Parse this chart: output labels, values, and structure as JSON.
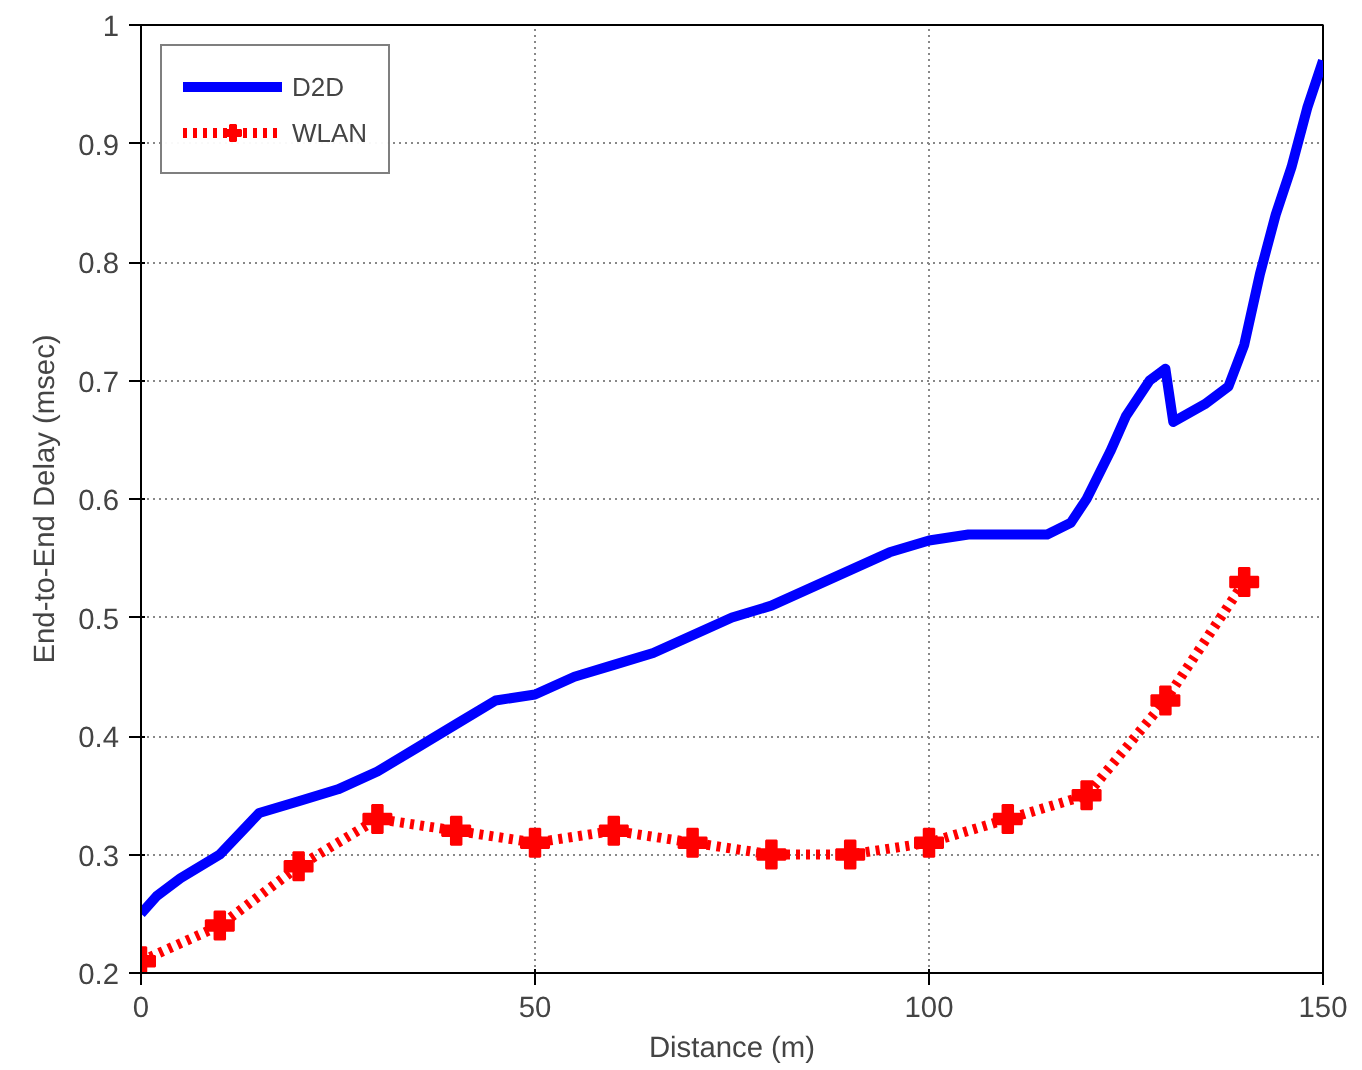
{
  "chart_data": {
    "type": "line",
    "xlabel": "Distance (m)",
    "ylabel": "End-to-End Delay (msec)",
    "xlim": [
      0,
      150
    ],
    "xticks": [
      0,
      50,
      100,
      150
    ],
    "ylim": [
      0.2,
      1
    ],
    "yticks": [
      0.2,
      0.3,
      0.4,
      0.5,
      0.6,
      0.7,
      0.8,
      0.9,
      1
    ],
    "grid": true,
    "legend": "top left",
    "series": [
      {
        "name": "D2D",
        "color": "#0000ff",
        "line_style": "solid",
        "marker": "none",
        "x": [
          0,
          2,
          5,
          10,
          15,
          20,
          25,
          30,
          35,
          40,
          45,
          50,
          55,
          60,
          65,
          70,
          75,
          80,
          85,
          90,
          95,
          100,
          105,
          110,
          115,
          118,
          120,
          123,
          125,
          128,
          130,
          131,
          135,
          138,
          140,
          142,
          144,
          146,
          148,
          150
        ],
        "values": [
          0.25,
          0.265,
          0.28,
          0.3,
          0.335,
          0.345,
          0.355,
          0.37,
          0.39,
          0.41,
          0.43,
          0.435,
          0.45,
          0.46,
          0.47,
          0.485,
          0.5,
          0.51,
          0.525,
          0.54,
          0.555,
          0.565,
          0.57,
          0.57,
          0.57,
          0.58,
          0.6,
          0.64,
          0.67,
          0.7,
          0.71,
          0.665,
          0.68,
          0.695,
          0.73,
          0.79,
          0.84,
          0.88,
          0.93,
          0.97
        ]
      },
      {
        "name": "WLAN",
        "color": "#ff0000",
        "line_style": "dotted",
        "marker": "cross",
        "x": [
          0,
          10,
          20,
          30,
          40,
          50,
          60,
          70,
          80,
          90,
          100,
          110,
          120,
          130,
          140
        ],
        "values": [
          0.21,
          0.24,
          0.29,
          0.33,
          0.32,
          0.31,
          0.32,
          0.31,
          0.3,
          0.3,
          0.31,
          0.33,
          0.35,
          0.43,
          0.53
        ]
      }
    ]
  }
}
